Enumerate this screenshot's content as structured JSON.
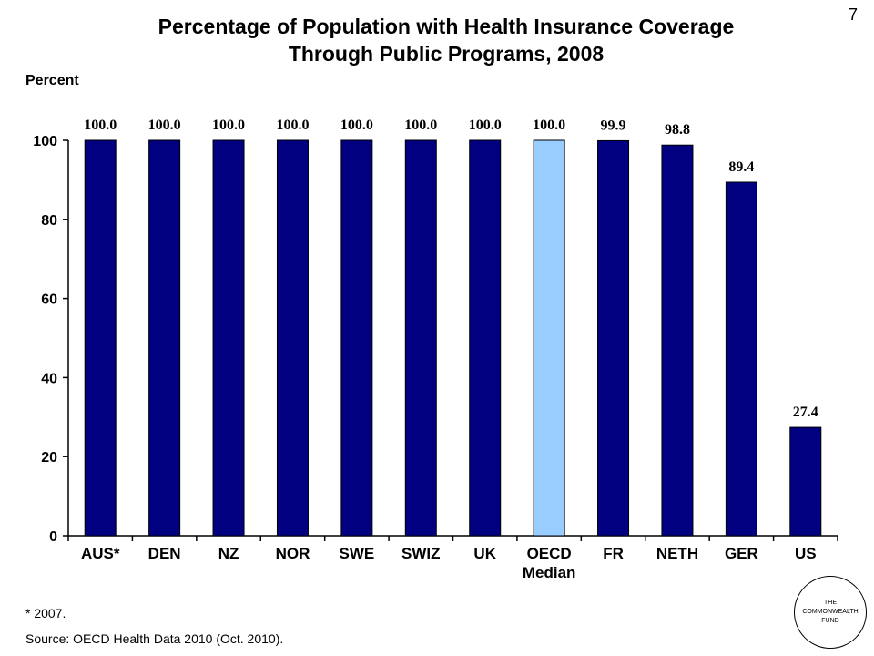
{
  "slide_number": "7",
  "title_lines": [
    "Percentage of Population with Health Insurance Coverage",
    "Through Public Programs, 2008"
  ],
  "footnote": "* 2007.",
  "source": "Source: OECD Health Data 2010 (Oct. 2010).",
  "logo": {
    "lines": [
      "THE",
      "COMMONWEALTH",
      "FUND"
    ]
  },
  "colors": {
    "bar": "#000080",
    "highlight": "#99ccff",
    "outline": "#000000"
  },
  "chart_data": {
    "type": "bar",
    "title": "Percentage of Population with Health Insurance Coverage Through Public Programs, 2008",
    "ylabel": "Percent",
    "xlabel": "",
    "ylim": [
      0,
      100
    ],
    "yticks": [
      0,
      20,
      40,
      60,
      80,
      100
    ],
    "grid": false,
    "legend": "none",
    "categories": [
      [
        "AUS*"
      ],
      [
        "DEN"
      ],
      [
        "NZ"
      ],
      [
        "NOR"
      ],
      [
        "SWE"
      ],
      [
        "SWIZ"
      ],
      [
        "UK"
      ],
      [
        "OECD",
        "Median"
      ],
      [
        "FR"
      ],
      [
        "NETH"
      ],
      [
        "GER"
      ],
      [
        "US"
      ]
    ],
    "values": [
      100.0,
      100.0,
      100.0,
      100.0,
      100.0,
      100.0,
      100.0,
      100.0,
      99.9,
      98.8,
      89.4,
      27.4
    ],
    "value_labels": [
      "100.0",
      "100.0",
      "100.0",
      "100.0",
      "100.0",
      "100.0",
      "100.0",
      "100.0",
      "99.9",
      "98.8",
      "89.4",
      "27.4"
    ],
    "highlight_index": 7
  }
}
